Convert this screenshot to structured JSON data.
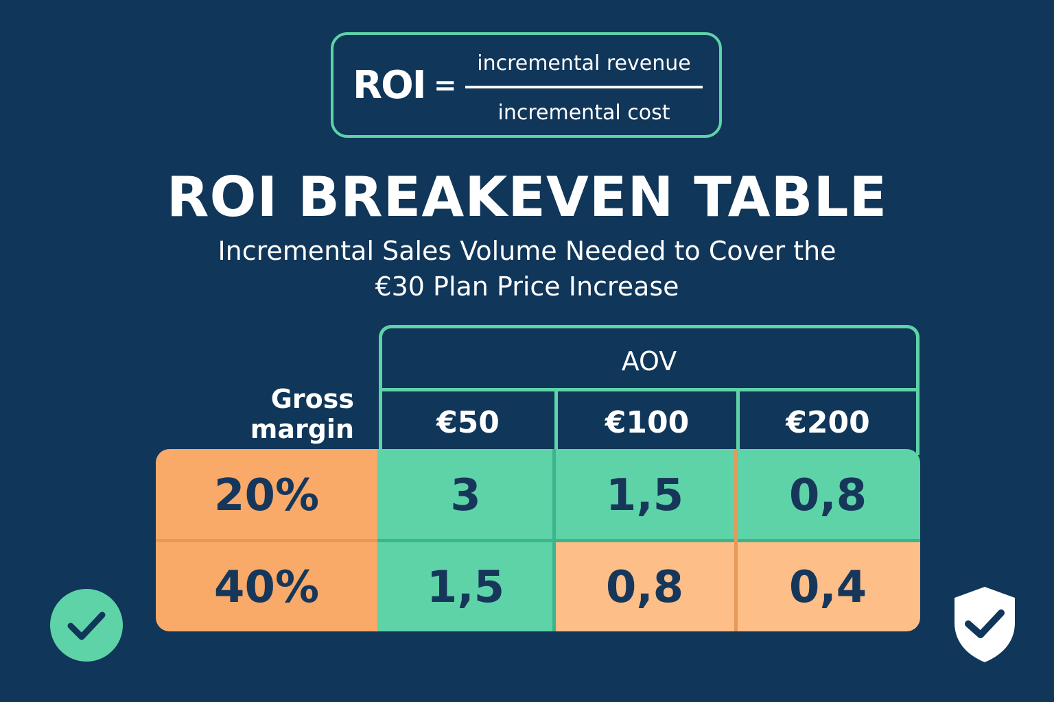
{
  "formula": {
    "lhs": "ROI",
    "equals": "=",
    "numerator": "incremental revenue",
    "denominator": "incremental cost"
  },
  "title": "ROI BREAKEVEN TABLE",
  "subtitle": {
    "line1": "Incremental Sales Volume Needed to Cover the",
    "line2": "€30 Plan Price Increase"
  },
  "table": {
    "column_group_label": "AOV",
    "row_header_label": "Gross margin",
    "columns": [
      "€50",
      "€100",
      "€200"
    ],
    "rows": [
      {
        "margin": "20%",
        "values": [
          "3",
          "1,5",
          "0,8"
        ]
      },
      {
        "margin": "40%",
        "values": [
          "1,5",
          "0,8",
          "0,4"
        ]
      }
    ],
    "colors": {
      "green": "#5ed3a8",
      "orange_strong": "#f9a968",
      "orange_soft": "#fdbe88",
      "background": "#103659",
      "text_dark": "#17375a"
    }
  },
  "icons": {
    "left": "check-circle-icon",
    "right": "shield-check-icon"
  }
}
